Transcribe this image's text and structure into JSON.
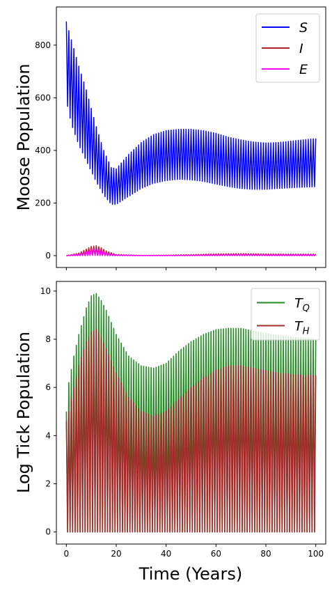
{
  "chart_data": [
    {
      "type": "line",
      "ylabel": "Moose Population",
      "xlabel": "",
      "xlim": [
        -4,
        104
      ],
      "ylim": [
        -45,
        945
      ],
      "x_ticks": [
        0,
        20,
        40,
        60,
        80,
        100
      ],
      "y_ticks": [
        0,
        200,
        400,
        600,
        800
      ],
      "x_tick_labels_shown": false,
      "legend_position": "top-right",
      "grid": false,
      "series": [
        {
          "name": "S",
          "color": "#0000ff",
          "style": "oscillating band",
          "x": [
            0,
            2,
            5,
            8,
            10,
            12,
            15,
            18,
            20,
            25,
            30,
            35,
            40,
            45,
            50,
            55,
            60,
            65,
            70,
            75,
            80,
            85,
            90,
            95,
            100
          ],
          "upper": [
            890,
            820,
            720,
            630,
            560,
            490,
            400,
            335,
            330,
            385,
            430,
            460,
            475,
            480,
            480,
            475,
            465,
            450,
            440,
            432,
            428,
            430,
            435,
            440,
            445
          ],
          "lower": [
            590,
            500,
            420,
            360,
            320,
            280,
            230,
            195,
            195,
            225,
            255,
            275,
            285,
            290,
            288,
            282,
            272,
            262,
            255,
            252,
            252,
            255,
            258,
            260,
            262
          ]
        },
        {
          "name": "I",
          "color": "#b22222",
          "style": "oscillating band",
          "x": [
            0,
            5,
            8,
            10,
            12,
            14,
            16,
            20,
            30,
            40,
            50,
            60,
            70,
            80,
            90,
            100
          ],
          "upper": [
            0,
            10,
            25,
            35,
            38,
            30,
            18,
            5,
            1,
            2,
            4,
            7,
            8,
            7,
            6,
            6
          ],
          "lower": [
            0,
            0,
            1,
            2,
            2,
            1,
            0,
            0,
            0,
            0,
            0,
            0,
            0,
            0,
            0,
            0
          ]
        },
        {
          "name": "E",
          "color": "#ff00ff",
          "style": "oscillating band",
          "x": [
            0,
            5,
            8,
            10,
            12,
            14,
            16,
            20,
            30,
            40,
            50,
            60,
            70,
            80,
            90,
            100
          ],
          "upper": [
            0,
            6,
            16,
            24,
            26,
            20,
            11,
            3,
            1,
            1,
            2,
            4,
            5,
            4,
            4,
            4
          ],
          "lower": [
            0,
            0,
            0,
            1,
            1,
            0,
            0,
            0,
            0,
            0,
            0,
            0,
            0,
            0,
            0,
            0
          ]
        }
      ],
      "legend": [
        "S",
        "I",
        "E"
      ]
    },
    {
      "type": "line",
      "ylabel": "Log Tick Population",
      "xlabel": "Time (Years)",
      "xlim": [
        -4,
        104
      ],
      "ylim": [
        -0.5,
        10.4
      ],
      "x_ticks": [
        0,
        20,
        40,
        60,
        80,
        100
      ],
      "y_ticks": [
        0,
        2,
        4,
        6,
        8,
        10
      ],
      "legend_position": "top-right",
      "grid": false,
      "series": [
        {
          "name": "T_Q",
          "color": "#228b22",
          "style": "oscillating band",
          "x": [
            0,
            1,
            3,
            5,
            8,
            10,
            12,
            14,
            16,
            20,
            25,
            30,
            35,
            40,
            45,
            50,
            55,
            60,
            65,
            70,
            75,
            80,
            85,
            90,
            95,
            100
          ],
          "upper": [
            5.0,
            6.2,
            7.3,
            8.2,
            9.3,
            9.8,
            9.9,
            9.6,
            9.2,
            8.2,
            7.3,
            6.9,
            6.8,
            7.0,
            7.5,
            7.9,
            8.2,
            8.4,
            8.45,
            8.45,
            8.35,
            8.25,
            8.15,
            8.1,
            8.05,
            8.0
          ],
          "lower": [
            0,
            0,
            0,
            0,
            0,
            0,
            0,
            0,
            0,
            0,
            0,
            0,
            0,
            0,
            0,
            0,
            0,
            0,
            0,
            0,
            0,
            0,
            0,
            0,
            0,
            0
          ]
        },
        {
          "name": "T_H",
          "color": "#a52a2a",
          "style": "oscillating band",
          "x": [
            0,
            1,
            3,
            5,
            8,
            10,
            12,
            14,
            16,
            20,
            25,
            30,
            35,
            40,
            45,
            50,
            55,
            60,
            65,
            70,
            75,
            80,
            85,
            90,
            95,
            100
          ],
          "upper": [
            4.6,
            5.0,
            6.0,
            6.9,
            7.9,
            8.3,
            8.4,
            8.1,
            7.6,
            6.6,
            5.6,
            5.0,
            4.8,
            5.0,
            5.5,
            6.0,
            6.4,
            6.7,
            6.9,
            6.9,
            6.8,
            6.7,
            6.6,
            6.55,
            6.5,
            6.5
          ],
          "lower": [
            0,
            0,
            0,
            0,
            0,
            0,
            0,
            0,
            0,
            0,
            0,
            0,
            0,
            0,
            0,
            0,
            0,
            0,
            0,
            0,
            0,
            0,
            0,
            0,
            0,
            0
          ]
        }
      ],
      "legend": [
        "T_Q",
        "T_H"
      ]
    }
  ]
}
